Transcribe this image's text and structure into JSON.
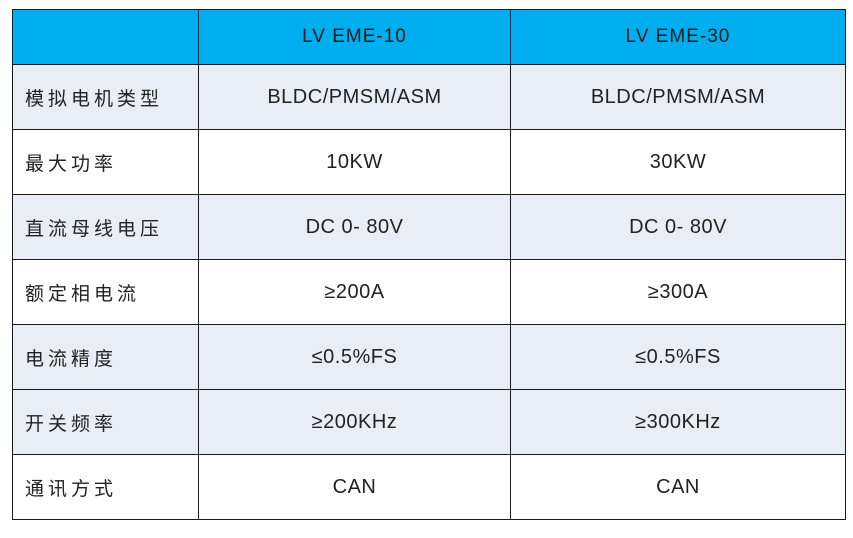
{
  "chart_data": {
    "type": "table",
    "title": "",
    "columns": [
      "",
      "LV EME-10",
      "LV EME-30"
    ],
    "rows": [
      [
        "模拟电机类型",
        "BLDC/PMSM/ASM",
        "BLDC/PMSM/ASM"
      ],
      [
        "最大功率",
        "10KW",
        "30KW"
      ],
      [
        "直流母线电压",
        "DC 0- 80V",
        "DC 0- 80V"
      ],
      [
        "额定相电流",
        "≥200A",
        "≥300A"
      ],
      [
        "电流精度",
        "≤0.5%FS",
        "≤0.5%FS"
      ],
      [
        "开关频率",
        "≥200KHz",
        "≥300KHz"
      ],
      [
        "通讯方式",
        "CAN",
        "CAN"
      ]
    ],
    "shaded_row_indexes": [
      0,
      2,
      4,
      5
    ],
    "layout": {
      "grid": "full-borders",
      "label_column_align": "left",
      "value_columns_align": "center"
    },
    "colors": {
      "header_bg": "#00AEEF",
      "header_text": "#1c1c1c",
      "shaded_row_bg": "#E9EDF6",
      "plain_row_bg": "#ffffff",
      "border": "#1a1a1a",
      "body_text": "#222222"
    }
  }
}
